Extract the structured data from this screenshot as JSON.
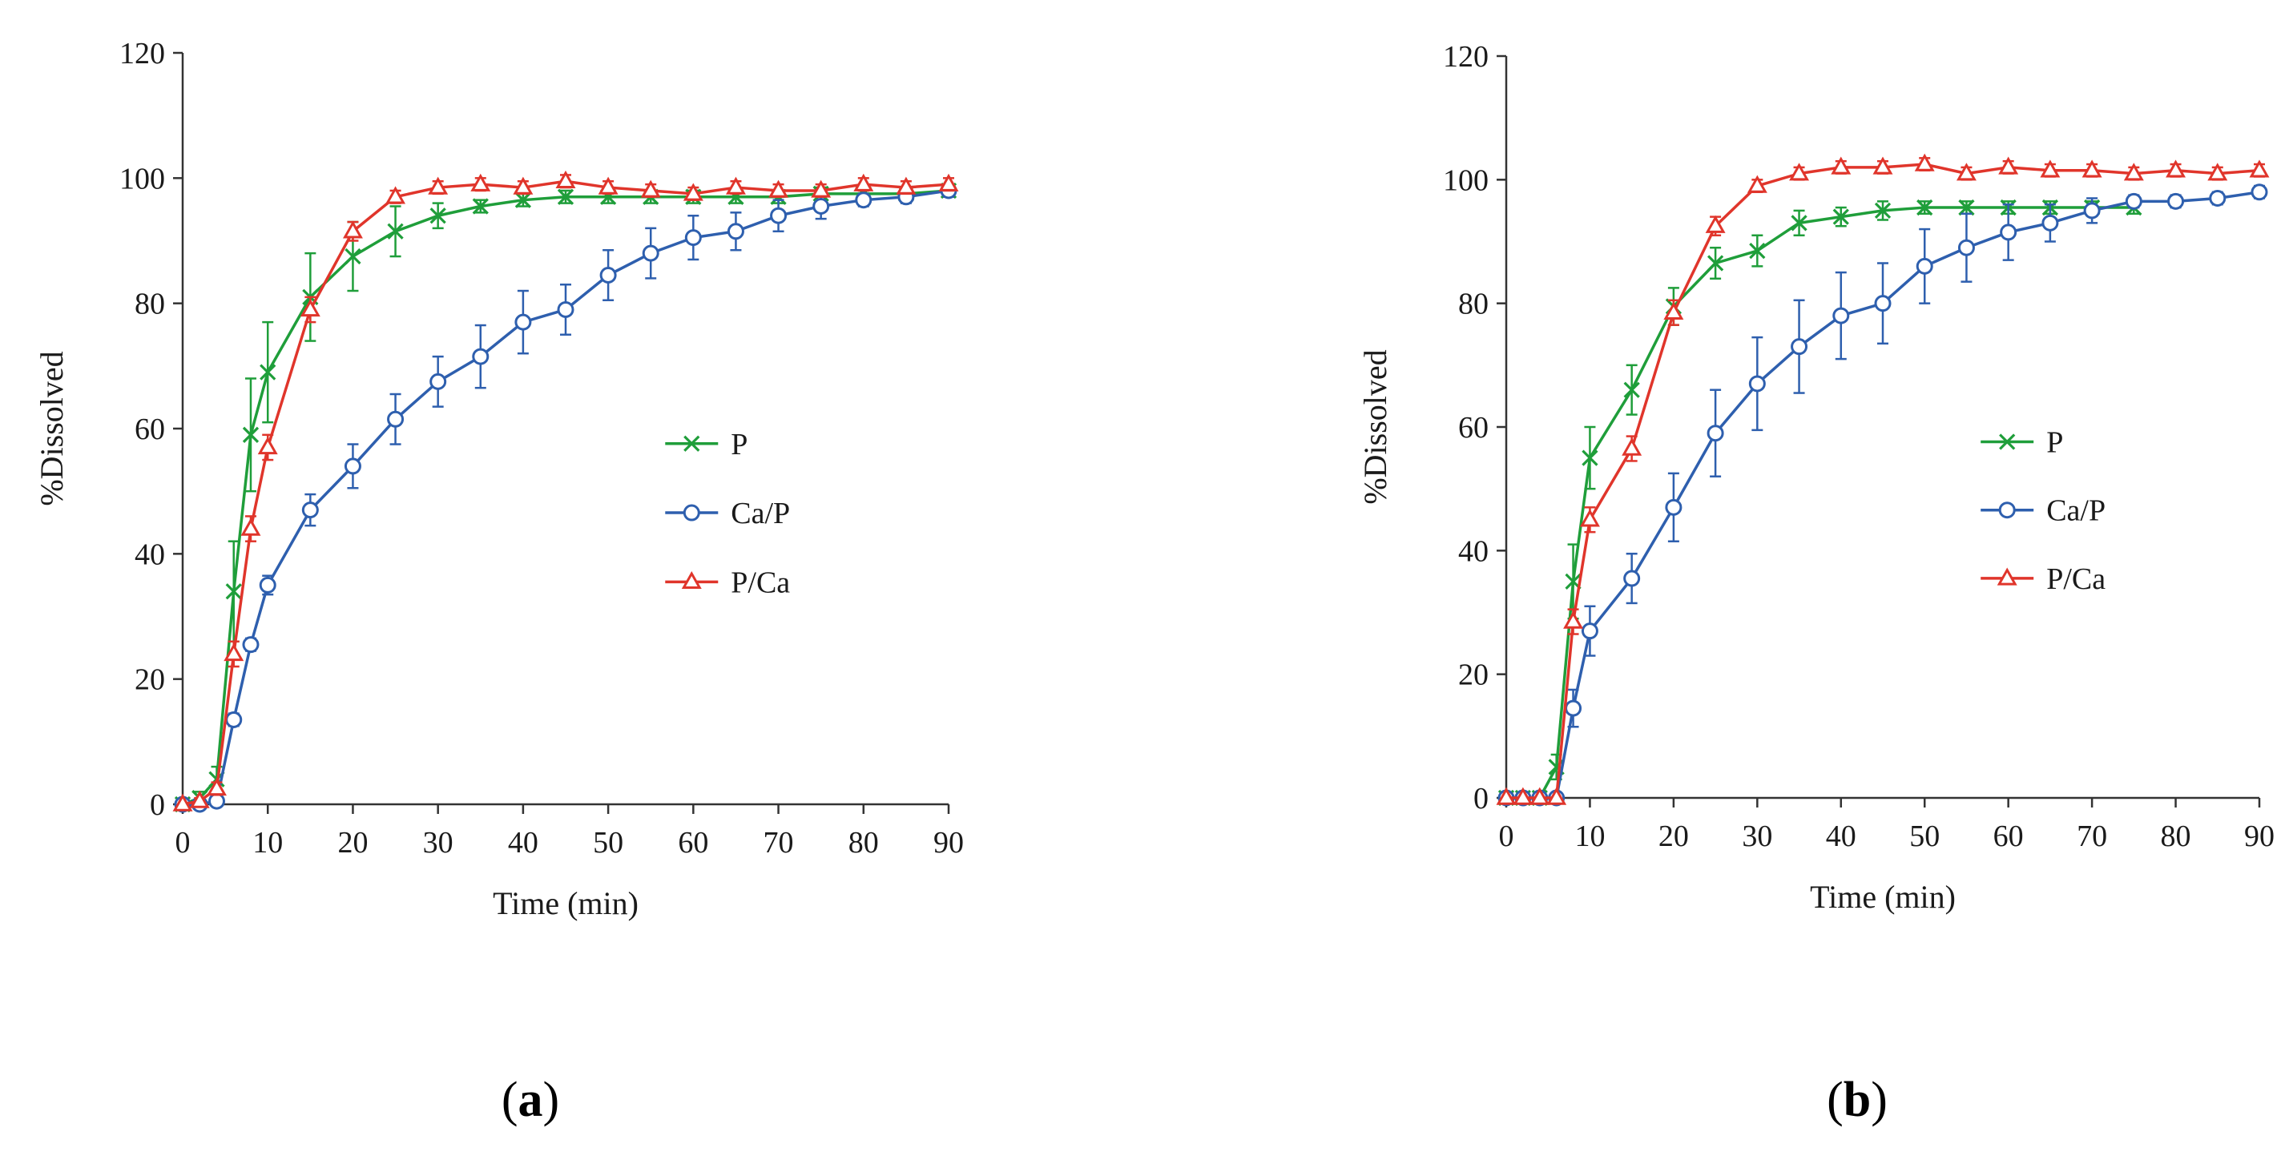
{
  "chart_data": [
    {
      "type": "line",
      "panel_label": "a",
      "xlabel": "Time (min)",
      "ylabel": "%Dissolved",
      "xlim": [
        0,
        90
      ],
      "ylim": [
        0,
        120
      ],
      "xticks": [
        0,
        10,
        20,
        30,
        40,
        50,
        60,
        70,
        80,
        90
      ],
      "yticks": [
        0,
        20,
        40,
        60,
        80,
        100,
        120
      ],
      "legend_position": "center-right",
      "series": [
        {
          "name": "P",
          "color": "#1f9e3a",
          "marker": "x",
          "x": [
            0,
            2,
            4,
            6,
            8,
            10,
            15,
            20,
            25,
            30,
            35,
            40,
            45,
            50,
            55,
            60,
            65,
            70,
            75,
            80,
            85,
            90
          ],
          "y": [
            0,
            1,
            4,
            34,
            59,
            69,
            81,
            87.5,
            91.5,
            94,
            95.5,
            96.5,
            97,
            97,
            97,
            97,
            97,
            97,
            97.5,
            97.5,
            97.5,
            98
          ],
          "err": [
            0,
            1,
            2,
            8,
            9,
            8,
            7,
            5.5,
            4,
            2,
            1,
            1,
            1,
            1,
            1,
            1,
            1,
            1,
            1,
            0.5,
            0.5,
            0.5
          ]
        },
        {
          "name": "Ca/P",
          "color": "#2e5fae",
          "marker": "circle",
          "x": [
            0,
            2,
            4,
            6,
            8,
            10,
            15,
            20,
            25,
            30,
            35,
            40,
            45,
            50,
            55,
            60,
            65,
            70,
            75,
            80,
            85,
            90
          ],
          "y": [
            0,
            0,
            0.5,
            13.5,
            25.5,
            35,
            47,
            54,
            61.5,
            67.5,
            71.5,
            77,
            79,
            84.5,
            88,
            90.5,
            91.5,
            94,
            95.5,
            96.5,
            97,
            98
          ],
          "err": [
            0,
            0,
            0.5,
            1,
            1,
            1.5,
            2.5,
            3.5,
            4,
            4,
            5,
            5,
            4,
            4,
            4,
            3.5,
            3,
            2.5,
            2,
            1,
            1,
            1
          ]
        },
        {
          "name": "P/Ca",
          "color": "#e0352b",
          "marker": "triangle",
          "x": [
            0,
            2,
            4,
            6,
            8,
            10,
            15,
            20,
            25,
            30,
            35,
            40,
            45,
            50,
            55,
            60,
            65,
            70,
            75,
            80,
            85,
            90
          ],
          "y": [
            0,
            0.5,
            2.5,
            24,
            44,
            57,
            79,
            91.5,
            97,
            98.5,
            99,
            98.5,
            99.5,
            98.5,
            98,
            97.5,
            98.5,
            98,
            98,
            99,
            98.5,
            99
          ],
          "err": [
            0,
            0.5,
            1,
            2,
            2,
            2,
            2,
            1.5,
            1,
            1,
            1,
            1,
            1,
            1,
            1,
            1,
            1,
            1,
            1,
            1,
            1,
            1
          ]
        }
      ]
    },
    {
      "type": "line",
      "panel_label": "b",
      "xlabel": "Time (min)",
      "ylabel": "%Dissolved",
      "xlim": [
        0,
        90
      ],
      "ylim": [
        0,
        120
      ],
      "xticks": [
        0,
        10,
        20,
        30,
        40,
        50,
        60,
        70,
        80,
        90
      ],
      "yticks": [
        0,
        20,
        40,
        60,
        80,
        100,
        120
      ],
      "legend_position": "center-right",
      "series": [
        {
          "name": "P",
          "color": "#1f9e3a",
          "marker": "x",
          "x": [
            0,
            2,
            4,
            6,
            8,
            10,
            15,
            20,
            25,
            30,
            35,
            40,
            45,
            50,
            55,
            60,
            65,
            70,
            75
          ],
          "y": [
            0,
            0,
            0,
            5,
            35,
            55,
            66,
            79.5,
            86.5,
            88.5,
            93,
            94,
            95,
            95.5,
            95.5,
            95.5,
            95.5,
            95.5,
            95.5
          ],
          "err": [
            0,
            0,
            0,
            2,
            6,
            5,
            4,
            3,
            2.5,
            2.5,
            2,
            1.5,
            1.5,
            1,
            1,
            1,
            1,
            1,
            1
          ]
        },
        {
          "name": "Ca/P",
          "color": "#2e5fae",
          "marker": "circle",
          "x": [
            0,
            2,
            4,
            6,
            8,
            10,
            15,
            20,
            25,
            30,
            35,
            40,
            45,
            50,
            55,
            60,
            65,
            70,
            75,
            80,
            85,
            90
          ],
          "y": [
            0,
            0,
            0,
            0,
            14.5,
            27,
            35.5,
            47,
            59,
            67,
            73,
            78,
            80,
            86,
            89,
            91.5,
            93,
            95,
            96.5,
            96.5,
            97,
            98
          ],
          "err": [
            0,
            0,
            0,
            0,
            3,
            4,
            4,
            5.5,
            7,
            7.5,
            7.5,
            7,
            6.5,
            6,
            5.5,
            4.5,
            3,
            2,
            1,
            1,
            1,
            1
          ]
        },
        {
          "name": "P/Ca",
          "color": "#e0352b",
          "marker": "triangle",
          "x": [
            0,
            2,
            4,
            6,
            8,
            10,
            15,
            20,
            25,
            30,
            35,
            40,
            45,
            50,
            55,
            60,
            65,
            70,
            75,
            80,
            85,
            90
          ],
          "y": [
            0,
            0,
            0,
            0,
            28.5,
            45,
            56.5,
            78.5,
            92.5,
            99,
            101,
            102,
            102,
            102.5,
            101,
            102,
            101.5,
            101.5,
            101,
            101.5,
            101,
            101.5
          ],
          "err": [
            0,
            0,
            0,
            0,
            2,
            2,
            2,
            2,
            1.5,
            1,
            1,
            1,
            1,
            1,
            1,
            1,
            1,
            1,
            1,
            1,
            1,
            1
          ]
        }
      ]
    }
  ]
}
